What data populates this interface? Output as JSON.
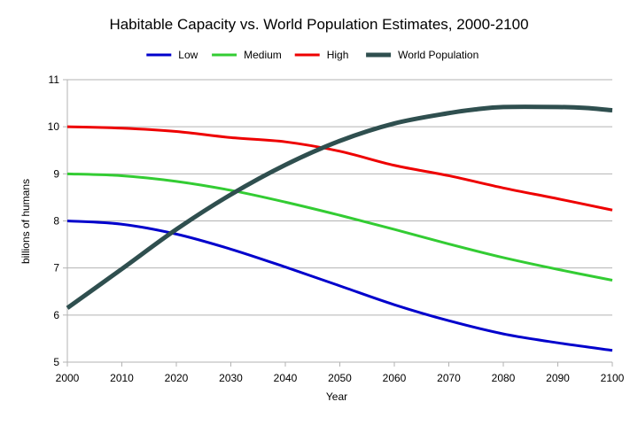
{
  "chart_data": {
    "type": "line",
    "title": "Habitable Capacity vs. World Population Estimates, 2000-2100",
    "xlabel": "Year",
    "ylabel": "billions of humans",
    "xlim": [
      2000,
      2100
    ],
    "ylim": [
      5,
      11
    ],
    "xticks": [
      2000,
      2010,
      2020,
      2030,
      2040,
      2050,
      2060,
      2070,
      2080,
      2090,
      2100
    ],
    "yticks": [
      5,
      6,
      7,
      8,
      9,
      10,
      11
    ],
    "grid": "horizontal",
    "legend_position": "top",
    "series": [
      {
        "name": "Low",
        "color": "#0000cc",
        "x": [
          2000,
          2010,
          2020,
          2030,
          2040,
          2050,
          2060,
          2070,
          2080,
          2090,
          2100
        ],
        "y": [
          8.0,
          7.93,
          7.72,
          7.4,
          7.02,
          6.62,
          6.22,
          5.88,
          5.6,
          5.41,
          5.25
        ]
      },
      {
        "name": "Medium",
        "color": "#33cc33",
        "x": [
          2000,
          2010,
          2020,
          2030,
          2040,
          2050,
          2060,
          2070,
          2080,
          2090,
          2100
        ],
        "y": [
          9.0,
          8.96,
          8.84,
          8.65,
          8.4,
          8.12,
          7.82,
          7.51,
          7.22,
          6.97,
          6.74
        ]
      },
      {
        "name": "High",
        "color": "#ee0000",
        "x": [
          2000,
          2010,
          2020,
          2030,
          2040,
          2050,
          2060,
          2070,
          2080,
          2090,
          2100
        ],
        "y": [
          10.0,
          9.97,
          9.9,
          9.77,
          9.68,
          9.48,
          9.18,
          8.96,
          8.7,
          8.47,
          8.23
        ]
      },
      {
        "name": "World Population",
        "color": "#2f4f4f",
        "x": [
          2000,
          2010,
          2020,
          2030,
          2040,
          2050,
          2060,
          2070,
          2075,
          2080,
          2090,
          2095,
          2100
        ],
        "y": [
          6.15,
          6.98,
          7.82,
          8.56,
          9.19,
          9.7,
          10.07,
          10.29,
          10.37,
          10.42,
          10.42,
          10.4,
          10.35
        ]
      }
    ]
  }
}
